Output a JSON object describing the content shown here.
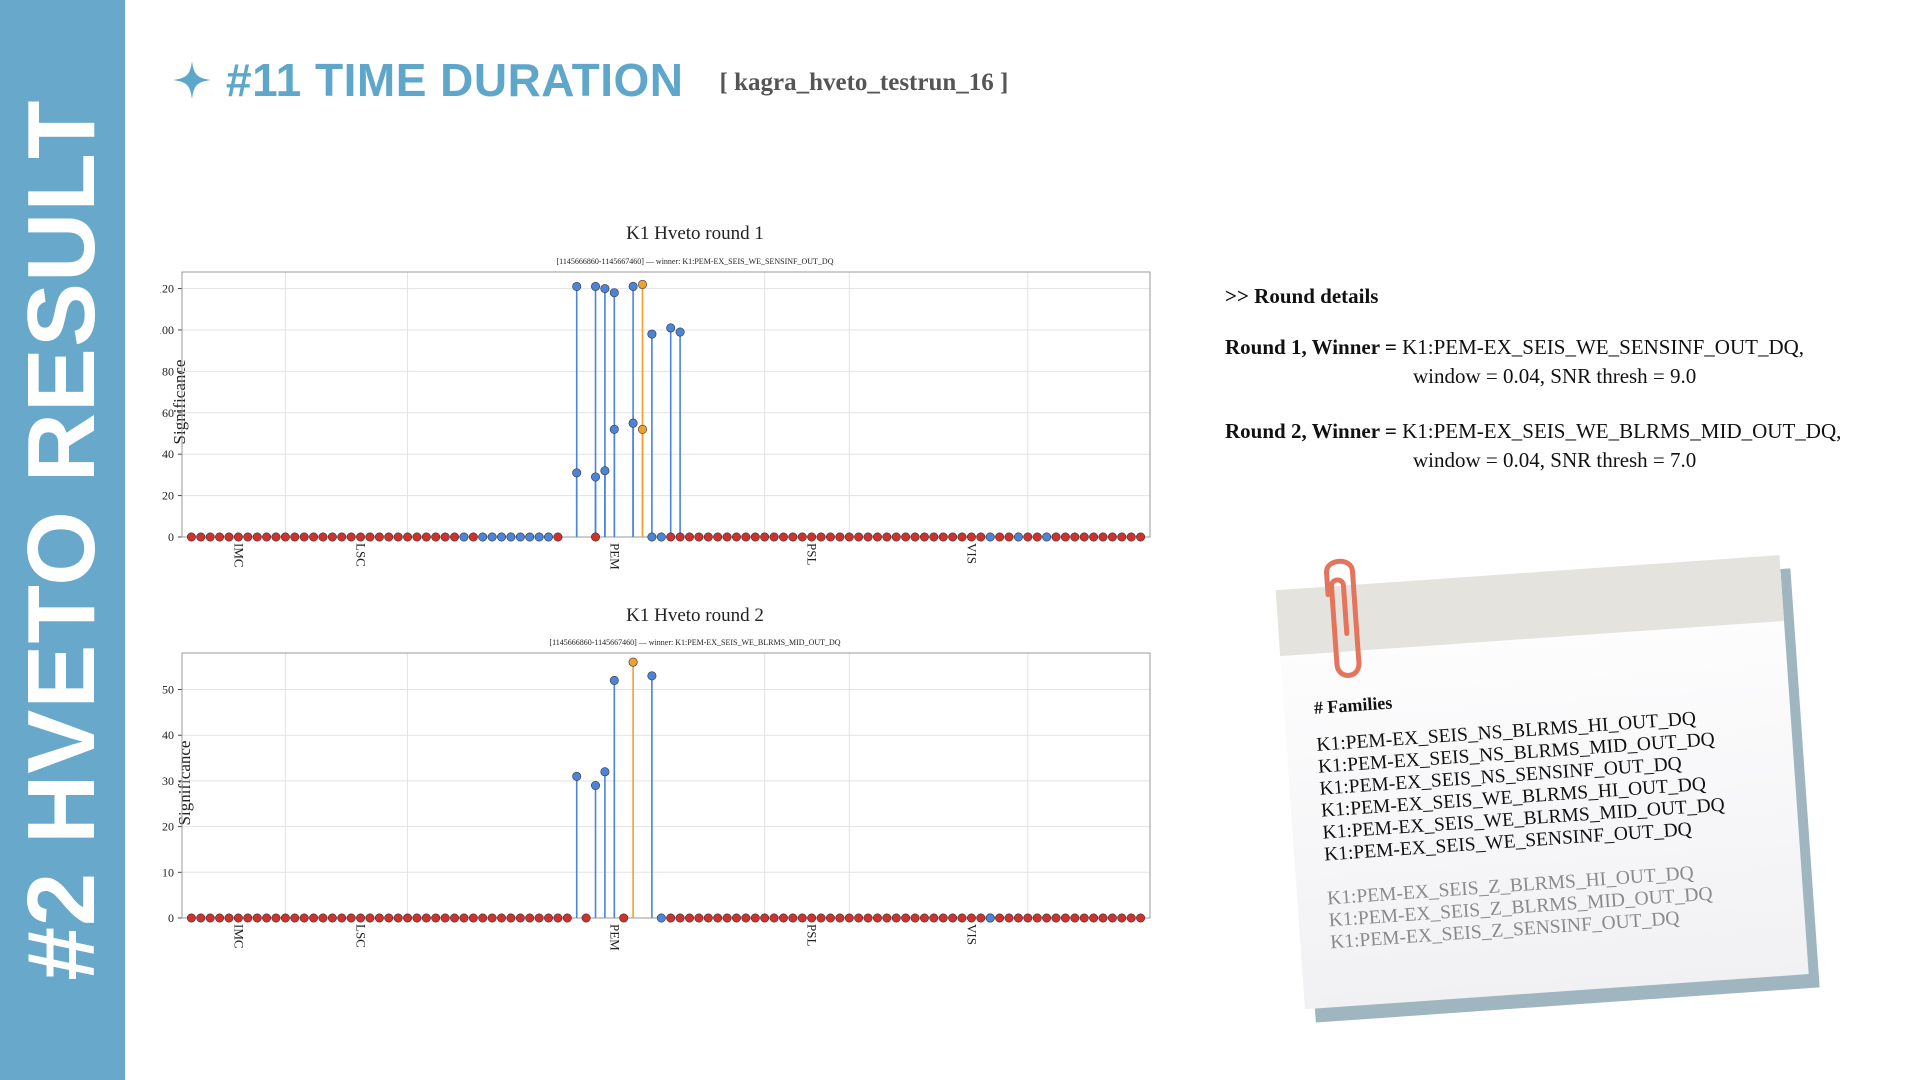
{
  "sidebar": {
    "title": "#2 HVETO RESULT"
  },
  "header": {
    "title": "#11 TIME DURATION",
    "run_tag": "[ kagra_hveto_testrun_16 ]"
  },
  "chart_data": [
    {
      "type": "scatter",
      "title": "K1 Hveto round 1",
      "subtitle": "[1145666860-1145667460] — winner: K1:PEM-EX_SEIS_WE_SENSINF_OUT_DQ",
      "xlabel": "",
      "ylabel": "Significance",
      "ylim": [
        0,
        128
      ],
      "yticks": [
        0,
        20,
        40,
        60,
        80,
        100,
        120
      ],
      "x_group_labels": [
        "IMC",
        "LSC",
        "PEM",
        "PSL",
        "VIS"
      ],
      "grid": true,
      "series": [
        {
          "color": "#d0312d",
          "points": [
            [
              1,
              0
            ],
            [
              2,
              0
            ],
            [
              3,
              0
            ],
            [
              4,
              0
            ],
            [
              5,
              0
            ],
            [
              6,
              0
            ],
            [
              7,
              0
            ],
            [
              8,
              0
            ],
            [
              9,
              0
            ],
            [
              10,
              0
            ],
            [
              11,
              0
            ],
            [
              12,
              0
            ],
            [
              13,
              0
            ],
            [
              14,
              0
            ],
            [
              15,
              0
            ],
            [
              16,
              0
            ],
            [
              17,
              0
            ],
            [
              18,
              0
            ],
            [
              19,
              0
            ],
            [
              20,
              0
            ],
            [
              21,
              0
            ],
            [
              22,
              0
            ],
            [
              23,
              0
            ],
            [
              24,
              0
            ],
            [
              25,
              0
            ],
            [
              26,
              0
            ],
            [
              27,
              0
            ],
            [
              28,
              0
            ],
            [
              29,
              0
            ],
            [
              31,
              0
            ],
            [
              40,
              0
            ],
            [
              44,
              0
            ],
            [
              52,
              0
            ],
            [
              53,
              0
            ],
            [
              54,
              0
            ],
            [
              55,
              0
            ],
            [
              56,
              0
            ],
            [
              57,
              0
            ],
            [
              58,
              0
            ],
            [
              59,
              0
            ],
            [
              60,
              0
            ],
            [
              61,
              0
            ],
            [
              62,
              0
            ],
            [
              63,
              0
            ],
            [
              64,
              0
            ],
            [
              65,
              0
            ],
            [
              66,
              0
            ],
            [
              67,
              0
            ],
            [
              68,
              0
            ],
            [
              69,
              0
            ],
            [
              70,
              0
            ],
            [
              71,
              0
            ],
            [
              72,
              0
            ],
            [
              73,
              0
            ],
            [
              74,
              0
            ],
            [
              75,
              0
            ],
            [
              76,
              0
            ],
            [
              77,
              0
            ],
            [
              78,
              0
            ],
            [
              79,
              0
            ],
            [
              80,
              0
            ],
            [
              81,
              0
            ],
            [
              82,
              0
            ],
            [
              83,
              0
            ],
            [
              84,
              0
            ],
            [
              85,
              0
            ],
            [
              87,
              0
            ],
            [
              88,
              0
            ],
            [
              90,
              0
            ],
            [
              91,
              0
            ],
            [
              93,
              0
            ],
            [
              94,
              0
            ],
            [
              95,
              0
            ],
            [
              96,
              0
            ],
            [
              97,
              0
            ],
            [
              98,
              0
            ],
            [
              99,
              0
            ],
            [
              100,
              0
            ],
            [
              101,
              0
            ],
            [
              102,
              0
            ]
          ]
        },
        {
          "color": "#4b84d9",
          "points": [
            [
              30,
              0
            ],
            [
              32,
              0
            ],
            [
              33,
              0
            ],
            [
              34,
              0
            ],
            [
              35,
              0
            ],
            [
              36,
              0
            ],
            [
              37,
              0
            ],
            [
              38,
              0
            ],
            [
              39,
              0
            ],
            [
              86,
              0
            ],
            [
              89,
              0
            ],
            [
              92,
              0
            ],
            [
              42,
              121
            ],
            [
              42,
              31
            ],
            [
              44,
              121
            ],
            [
              44,
              29
            ],
            [
              45,
              120
            ],
            [
              45,
              32
            ],
            [
              46,
              118
            ],
            [
              46,
              52
            ],
            [
              48,
              121
            ],
            [
              48,
              55
            ],
            [
              50,
              98
            ],
            [
              50,
              0
            ],
            [
              51,
              0
            ],
            [
              52,
              101
            ],
            [
              53,
              99
            ]
          ]
        },
        {
          "color": "#f0a030",
          "points": [
            [
              49,
              122
            ],
            [
              49,
              52
            ]
          ]
        }
      ]
    },
    {
      "type": "scatter",
      "title": "K1 Hveto round 2",
      "subtitle": "[1145666860-1145667460] — winner: K1:PEM-EX_SEIS_WE_BLRMS_MID_OUT_DQ",
      "xlabel": "",
      "ylabel": "Significance",
      "ylim": [
        0,
        58
      ],
      "yticks": [
        0,
        10,
        20,
        30,
        40,
        50
      ],
      "x_group_labels": [
        "IMC",
        "LSC",
        "PEM",
        "PSL",
        "VIS"
      ],
      "grid": true,
      "series": [
        {
          "color": "#d0312d",
          "points": [
            [
              1,
              0
            ],
            [
              2,
              0
            ],
            [
              3,
              0
            ],
            [
              4,
              0
            ],
            [
              5,
              0
            ],
            [
              6,
              0
            ],
            [
              7,
              0
            ],
            [
              8,
              0
            ],
            [
              9,
              0
            ],
            [
              10,
              0
            ],
            [
              11,
              0
            ],
            [
              12,
              0
            ],
            [
              13,
              0
            ],
            [
              14,
              0
            ],
            [
              15,
              0
            ],
            [
              16,
              0
            ],
            [
              17,
              0
            ],
            [
              18,
              0
            ],
            [
              19,
              0
            ],
            [
              20,
              0
            ],
            [
              21,
              0
            ],
            [
              22,
              0
            ],
            [
              23,
              0
            ],
            [
              24,
              0
            ],
            [
              25,
              0
            ],
            [
              26,
              0
            ],
            [
              27,
              0
            ],
            [
              28,
              0
            ],
            [
              29,
              0
            ],
            [
              30,
              0
            ],
            [
              31,
              0
            ],
            [
              32,
              0
            ],
            [
              33,
              0
            ],
            [
              34,
              0
            ],
            [
              35,
              0
            ],
            [
              36,
              0
            ],
            [
              37,
              0
            ],
            [
              38,
              0
            ],
            [
              39,
              0
            ],
            [
              40,
              0
            ],
            [
              41,
              0
            ],
            [
              43,
              0
            ],
            [
              47,
              0
            ],
            [
              52,
              0
            ],
            [
              53,
              0
            ],
            [
              54,
              0
            ],
            [
              55,
              0
            ],
            [
              56,
              0
            ],
            [
              57,
              0
            ],
            [
              58,
              0
            ],
            [
              59,
              0
            ],
            [
              60,
              0
            ],
            [
              61,
              0
            ],
            [
              62,
              0
            ],
            [
              63,
              0
            ],
            [
              64,
              0
            ],
            [
              65,
              0
            ],
            [
              66,
              0
            ],
            [
              67,
              0
            ],
            [
              68,
              0
            ],
            [
              69,
              0
            ],
            [
              70,
              0
            ],
            [
              71,
              0
            ],
            [
              72,
              0
            ],
            [
              73,
              0
            ],
            [
              74,
              0
            ],
            [
              75,
              0
            ],
            [
              76,
              0
            ],
            [
              77,
              0
            ],
            [
              78,
              0
            ],
            [
              79,
              0
            ],
            [
              80,
              0
            ],
            [
              81,
              0
            ],
            [
              82,
              0
            ],
            [
              83,
              0
            ],
            [
              84,
              0
            ],
            [
              85,
              0
            ],
            [
              86,
              0
            ],
            [
              87,
              0
            ],
            [
              88,
              0
            ],
            [
              89,
              0
            ],
            [
              90,
              0
            ],
            [
              91,
              0
            ],
            [
              92,
              0
            ],
            [
              93,
              0
            ],
            [
              94,
              0
            ],
            [
              95,
              0
            ],
            [
              96,
              0
            ],
            [
              97,
              0
            ],
            [
              98,
              0
            ],
            [
              99,
              0
            ],
            [
              100,
              0
            ],
            [
              101,
              0
            ],
            [
              102,
              0
            ]
          ]
        },
        {
          "color": "#4b84d9",
          "points": [
            [
              42,
              31
            ],
            [
              44,
              29
            ],
            [
              45,
              32
            ],
            [
              46,
              52
            ],
            [
              50,
              53
            ],
            [
              51,
              0
            ],
            [
              86,
              0
            ]
          ]
        },
        {
          "color": "#f0a030",
          "points": [
            [
              48,
              56
            ]
          ]
        }
      ]
    }
  ],
  "details": {
    "heading": ">> Round details",
    "rounds": [
      {
        "label": "Round 1, Winner =",
        "channel": "K1:PEM-EX_SEIS_WE_SENSINF_OUT_DQ,",
        "params": "window = 0.04, SNR thresh = 9.0"
      },
      {
        "label": "Round 2, Winner =",
        "channel": "K1:PEM-EX_SEIS_WE_BLRMS_MID_OUT_DQ,",
        "params": "window = 0.04, SNR thresh = 7.0"
      }
    ]
  },
  "note": {
    "heading": "# Families",
    "families_primary": [
      "K1:PEM-EX_SEIS_NS_BLRMS_HI_OUT_DQ",
      "K1:PEM-EX_SEIS_NS_BLRMS_MID_OUT_DQ",
      "K1:PEM-EX_SEIS_NS_SENSINF_OUT_DQ",
      "K1:PEM-EX_SEIS_WE_BLRMS_HI_OUT_DQ",
      "K1:PEM-EX_SEIS_WE_BLRMS_MID_OUT_DQ",
      "K1:PEM-EX_SEIS_WE_SENSINF_OUT_DQ"
    ],
    "families_secondary": [
      "K1:PEM-EX_SEIS_Z_BLRMS_HI_OUT_DQ",
      "K1:PEM-EX_SEIS_Z_BLRMS_MID_OUT_DQ",
      "K1:PEM-EX_SEIS_Z_SENSINF_OUT_DQ"
    ]
  },
  "colors": {
    "sidebar": "#67a8cb",
    "title": "#5fa6cb",
    "red": "#d0312d",
    "blue": "#4b84d9",
    "orange": "#f0a030"
  },
  "icons": {
    "sparkle": "sparkle-icon",
    "clip": "paperclip-icon"
  }
}
